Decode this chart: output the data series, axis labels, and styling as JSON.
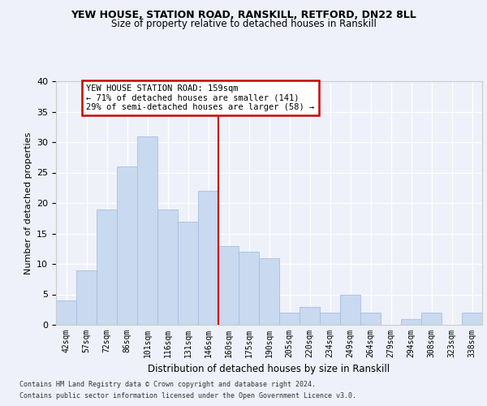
{
  "title_line1": "YEW HOUSE, STATION ROAD, RANSKILL, RETFORD, DN22 8LL",
  "title_line2": "Size of property relative to detached houses in Ranskill",
  "xlabel": "Distribution of detached houses by size in Ranskill",
  "ylabel": "Number of detached properties",
  "bin_labels": [
    "42sqm",
    "57sqm",
    "72sqm",
    "86sqm",
    "101sqm",
    "116sqm",
    "131sqm",
    "146sqm",
    "160sqm",
    "175sqm",
    "190sqm",
    "205sqm",
    "220sqm",
    "234sqm",
    "249sqm",
    "264sqm",
    "279sqm",
    "294sqm",
    "308sqm",
    "323sqm",
    "338sqm"
  ],
  "bar_values": [
    4,
    9,
    19,
    26,
    31,
    19,
    17,
    22,
    13,
    12,
    11,
    2,
    3,
    2,
    5,
    2,
    0,
    1,
    2,
    0,
    2
  ],
  "bar_color": "#c8d9f0",
  "bar_edgecolor": "#a8c0de",
  "vline_index": 8,
  "marker_label": "YEW HOUSE STATION ROAD: 159sqm",
  "annotation_line1": "← 71% of detached houses are smaller (141)",
  "annotation_line2": "29% of semi-detached houses are larger (58) →",
  "annotation_box_facecolor": "#ffffff",
  "annotation_box_edgecolor": "#cc0000",
  "vline_color": "#cc0000",
  "ylim": [
    0,
    40
  ],
  "yticks": [
    0,
    5,
    10,
    15,
    20,
    25,
    30,
    35,
    40
  ],
  "background_color": "#eef1f9",
  "grid_color": "#ffffff",
  "footer_line1": "Contains HM Land Registry data © Crown copyright and database right 2024.",
  "footer_line2": "Contains public sector information licensed under the Open Government Licence v3.0."
}
